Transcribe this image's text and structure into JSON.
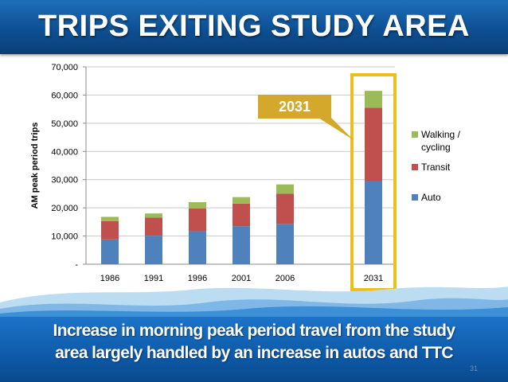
{
  "slide": {
    "title": "TRIPS EXITING STUDY AREA",
    "caption_line1": "Increase in morning peak period travel from the study",
    "caption_line2": "area largely handled by an increase in autos and TTC",
    "slide_number": "31"
  },
  "colors": {
    "auto": "#4f81bd",
    "transit": "#c0504d",
    "walking": "#9bbb59",
    "highlight": "#e8c020",
    "callout": "#d4a82a",
    "header": "#0d4f93"
  },
  "chart_data": {
    "type": "bar",
    "stacked": true,
    "title": "",
    "xlabel": "",
    "ylabel": "AM peak period trips",
    "ylim": [
      0,
      70000
    ],
    "yticks": [
      0,
      10000,
      20000,
      30000,
      40000,
      50000,
      60000,
      70000
    ],
    "ytick_labels": [
      "-",
      "10,000",
      "20,000",
      "30,000",
      "40,000",
      "50,000",
      "60,000",
      "70,000"
    ],
    "categories": [
      "1986",
      "1991",
      "1996",
      "2001",
      "2006",
      "2031"
    ],
    "series": [
      {
        "name": "Auto",
        "values": [
          8800,
          10100,
          11700,
          13500,
          14300,
          29500
        ]
      },
      {
        "name": "Transit",
        "values": [
          6500,
          6400,
          8100,
          8000,
          10700,
          26000
        ]
      },
      {
        "name": "Walking / cycling",
        "values": [
          1500,
          1500,
          2200,
          2300,
          3300,
          6000
        ]
      }
    ],
    "legend": {
      "position": "right",
      "entries": [
        "Walking /",
        "cycling",
        "Transit",
        "Auto"
      ]
    },
    "annotation": {
      "label": "2031",
      "target": "2031"
    },
    "grid": true
  }
}
